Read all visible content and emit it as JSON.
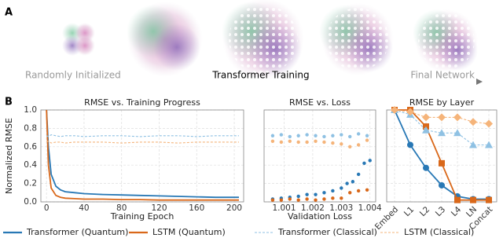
{
  "panel_labels": [
    "A",
    "B"
  ],
  "embedding_stage_labels": [
    "Randomly Initialized",
    "Transformer Training",
    "Final Network"
  ],
  "chart_data": [
    {
      "type": "line",
      "title": "RMSE vs. Training Progress",
      "x_label": "Training Epoch",
      "y_label": "Normalized RMSE",
      "x": [
        0,
        2,
        5,
        10,
        15,
        20,
        30,
        40,
        60,
        80,
        100,
        120,
        140,
        160,
        180,
        200,
        205
      ],
      "xlim": [
        -6,
        210
      ],
      "xticks": [
        0,
        40,
        80,
        120,
        160,
        200
      ],
      "ylim": [
        0,
        1
      ],
      "yticks": [
        {
          "value": 0,
          "label": "0.0"
        },
        {
          "value": 0.2,
          "label": "0.2"
        },
        {
          "value": 0.4,
          "label": "0.4"
        },
        {
          "value": 0.6,
          "label": "0.6"
        },
        {
          "value": 0.8,
          "label": "0.8"
        },
        {
          "value": 1,
          "label": "1.0"
        }
      ],
      "grid": true,
      "legend": "bottom",
      "series": [
        {
          "name": "Transformer (Quantum)",
          "color": "#2878b5",
          "dash": false,
          "values": [
            1.0,
            0.6,
            0.3,
            0.17,
            0.13,
            0.11,
            0.1,
            0.09,
            0.08,
            0.075,
            0.07,
            0.065,
            0.06,
            0.055,
            0.05,
            0.05,
            0.05
          ]
        },
        {
          "name": "LSTM (Quantum)",
          "color": "#d9681a",
          "dash": false,
          "values": [
            1.0,
            0.4,
            0.15,
            0.07,
            0.05,
            0.04,
            0.035,
            0.03,
            0.03,
            0.025,
            0.025,
            0.02,
            0.02,
            0.02,
            0.02,
            0.02,
            0.02
          ]
        },
        {
          "name": "Transformer (Classical)",
          "color": "#8fc1e3",
          "dash": true,
          "values": [
            0.72,
            0.71,
            0.73,
            0.72,
            0.71,
            0.72,
            0.72,
            0.71,
            0.72,
            0.72,
            0.71,
            0.72,
            0.72,
            0.71,
            0.72,
            0.72,
            0.72
          ]
        },
        {
          "name": "LSTM (Classical)",
          "color": "#f5b47a",
          "dash": true,
          "values": [
            0.65,
            0.66,
            0.64,
            0.65,
            0.65,
            0.64,
            0.65,
            0.65,
            0.65,
            0.64,
            0.65,
            0.65,
            0.64,
            0.65,
            0.65,
            0.65,
            0.65
          ]
        }
      ]
    },
    {
      "type": "scatter",
      "title": "RMSE vs. Loss",
      "x_label": "Validation Loss",
      "xlim": [
        1.0003,
        1.0042
      ],
      "xticks": [
        1.001,
        1.002,
        1.003,
        1.004
      ],
      "ylim": [
        0,
        1
      ],
      "yticks": [
        0,
        0.2,
        0.4,
        0.6,
        0.8,
        1
      ],
      "ytick_labels": false,
      "grid": true,
      "series": [
        {
          "name": "Transformer (Classical)",
          "color": "#8fc1e3",
          "x": [
            1.0006,
            1.0009,
            1.0012,
            1.0015,
            1.0018,
            1.0021,
            1.0024,
            1.0027,
            1.003,
            1.0033,
            1.0036,
            1.0039
          ],
          "values": [
            0.72,
            0.73,
            0.71,
            0.72,
            0.73,
            0.72,
            0.71,
            0.72,
            0.73,
            0.71,
            0.74,
            0.72
          ]
        },
        {
          "name": "LSTM (Classical)",
          "color": "#f5b47a",
          "x": [
            1.0006,
            1.0009,
            1.0012,
            1.0015,
            1.0018,
            1.0021,
            1.0024,
            1.0027,
            1.003,
            1.0033,
            1.0036,
            1.0039
          ],
          "values": [
            0.66,
            0.65,
            0.66,
            0.65,
            0.65,
            0.66,
            0.65,
            0.64,
            0.63,
            0.6,
            0.62,
            0.67
          ]
        },
        {
          "name": "Transformer (Quantum)",
          "color": "#2878b5",
          "x": [
            1.0006,
            1.0009,
            1.0012,
            1.0015,
            1.0018,
            1.0021,
            1.0024,
            1.0027,
            1.003,
            1.0032,
            1.0034,
            1.0036,
            1.0038,
            1.004
          ],
          "values": [
            0.03,
            0.04,
            0.05,
            0.06,
            0.08,
            0.08,
            0.1,
            0.12,
            0.15,
            0.2,
            0.22,
            0.3,
            0.42,
            0.45
          ]
        },
        {
          "name": "LSTM (Quantum)",
          "color": "#d9681a",
          "x": [
            1.0006,
            1.0009,
            1.0012,
            1.0015,
            1.0018,
            1.0021,
            1.0024,
            1.0027,
            1.003,
            1.0033,
            1.0036,
            1.0039
          ],
          "values": [
            0.02,
            0.02,
            0.03,
            0.02,
            0.03,
            0.02,
            0.03,
            0.04,
            0.04,
            0.1,
            0.12,
            0.13
          ]
        }
      ]
    },
    {
      "type": "line",
      "title": "RMSE by Layer",
      "categories": [
        "Embed",
        "L1",
        "L2",
        "L3",
        "L4",
        "LN",
        "Concat"
      ],
      "ylim": [
        0,
        1
      ],
      "yticks": [
        0,
        0.2,
        0.4,
        0.6,
        0.8,
        1
      ],
      "ytick_labels": false,
      "grid": true,
      "series": [
        {
          "name": "Transformer (Quantum)",
          "color": "#2878b5",
          "marker": "circle",
          "dash": false,
          "values": [
            1.0,
            0.62,
            0.37,
            0.18,
            0.06,
            0.03,
            0.03
          ]
        },
        {
          "name": "LSTM (Quantum)",
          "color": "#d9681a",
          "marker": "square",
          "dash": false,
          "values": [
            1.0,
            1.0,
            0.82,
            0.42,
            0.02,
            0.02,
            0.02
          ]
        },
        {
          "name": "Transformer (Classical)",
          "color": "#8fc1e3",
          "marker": "triangle",
          "dash": true,
          "values": [
            1.0,
            0.95,
            0.78,
            0.75,
            0.75,
            0.62,
            0.62
          ]
        },
        {
          "name": "LSTM (Classical)",
          "color": "#f5b47a",
          "marker": "diamond",
          "dash": true,
          "values": [
            1.0,
            0.98,
            0.92,
            0.92,
            0.92,
            0.87,
            0.85
          ]
        }
      ]
    }
  ]
}
